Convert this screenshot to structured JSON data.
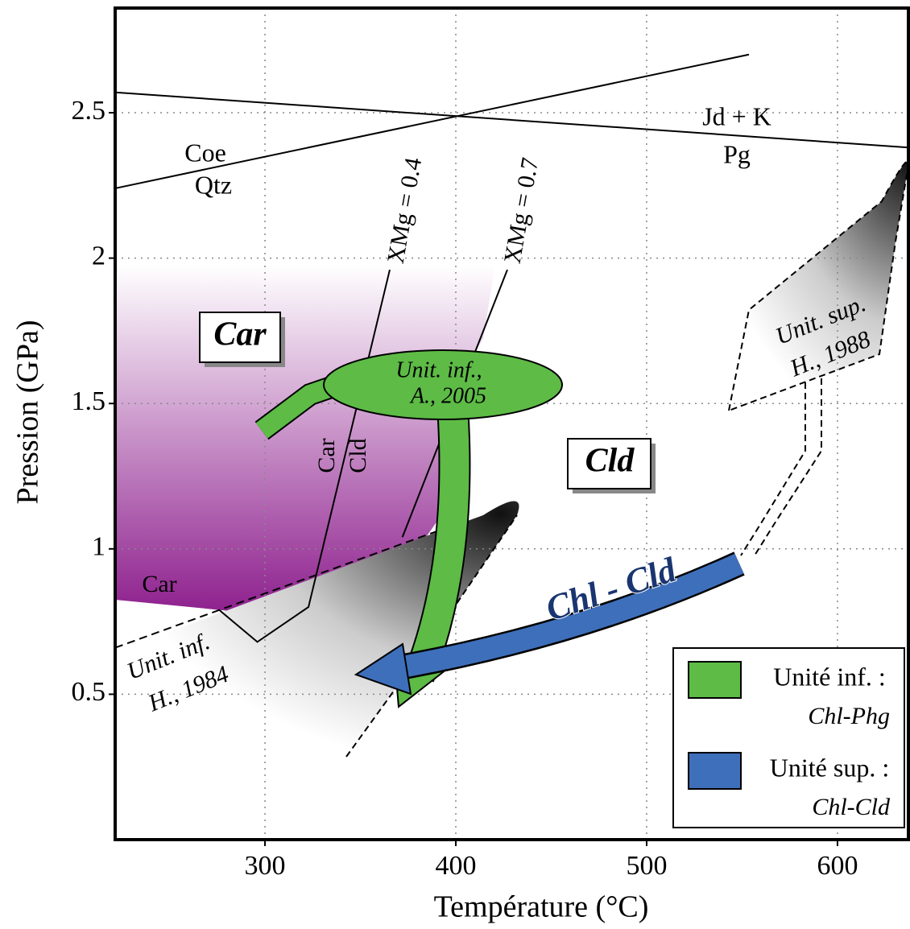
{
  "chart_data": {
    "type": "pt-diagram",
    "xlabel": "Température (°C)",
    "ylabel": "Pression (GPa)",
    "xlim": [
      221.5,
      638
    ],
    "ylim": [
      0,
      2.86
    ],
    "xticks": [
      300,
      400,
      500,
      600
    ],
    "yticks": [
      0.5,
      1,
      1.5,
      2,
      2.5
    ],
    "grid": true,
    "lines": [
      {
        "x": [
          221.5,
          553.6
        ],
        "values": [
          2.24,
          2.7
        ],
        "dash": false
      },
      {
        "x": [
          221.5,
          638
        ],
        "values": [
          2.57,
          2.38
        ],
        "dash": false
      },
      {
        "x": [
          365.4,
          322.8,
          296,
          276
        ],
        "values": [
          1.96,
          0.8,
          0.68,
          0.79
        ],
        "dash": false
      },
      {
        "x": [
          427,
          372
        ],
        "values": [
          1.96,
          1.04
        ],
        "dash": false
      },
      {
        "x": [
          221.5,
          394
        ],
        "values": [
          0.66,
          1.07
        ],
        "dash": true
      }
    ],
    "annotations": [
      "Coe",
      "Qtz",
      "Jd + K",
      "Pg",
      "XMg = 0.4",
      "XMg = 0.7",
      "Car",
      "Cld",
      "Car",
      "Cld",
      "Car",
      "Unit. inf.,",
      "A., 2005",
      "Unit. sup.",
      "H., 1988",
      "Unit. inf.",
      "H., 1984",
      "Chl - Cld"
    ],
    "legend": [
      {
        "label": "Unité inf. :",
        "sublabel": "Chl-Phg",
        "color": "#5dbb46"
      },
      {
        "label": "Unité sup. :",
        "sublabel": "Chl-Cld",
        "color": "#3e6fba"
      }
    ]
  }
}
